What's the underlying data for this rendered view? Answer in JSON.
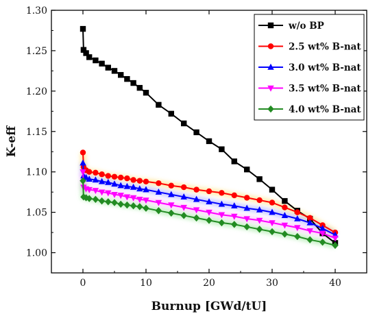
{
  "chart_data": {
    "type": "line",
    "title": "",
    "xlabel": "Burnup [GWd/tU]",
    "ylabel": "K-eff",
    "xlim": [
      -5,
      45
    ],
    "ylim": [
      0.975,
      1.3
    ],
    "x_ticks": [
      0,
      10,
      20,
      30,
      40
    ],
    "y_ticks": [
      1.0,
      1.05,
      1.1,
      1.15,
      1.2,
      1.25,
      1.3
    ],
    "grid": false,
    "legend_position": "top-right",
    "series": [
      {
        "name": "w/o BP",
        "color": "#000000",
        "marker": "square",
        "x": [
          0,
          0.1,
          0.5,
          1,
          2,
          3,
          4,
          5,
          6,
          7,
          8,
          9,
          10,
          12,
          14,
          16,
          18,
          20,
          22,
          24,
          26,
          28,
          30,
          32,
          34,
          36,
          38,
          40
        ],
        "y": [
          1.277,
          1.251,
          1.247,
          1.242,
          1.238,
          1.234,
          1.229,
          1.225,
          1.22,
          1.215,
          1.21,
          1.204,
          1.198,
          1.183,
          1.172,
          1.16,
          1.149,
          1.138,
          1.128,
          1.113,
          1.103,
          1.091,
          1.078,
          1.064,
          1.052,
          1.042,
          1.024,
          1.012
        ]
      },
      {
        "name": "2.5 wt% B-nat",
        "color": "#ff0000",
        "marker": "circle",
        "x": [
          0,
          0.1,
          0.5,
          1,
          2,
          3,
          4,
          5,
          6,
          7,
          8,
          9,
          10,
          12,
          14,
          16,
          18,
          20,
          22,
          24,
          26,
          28,
          30,
          32,
          34,
          36,
          38,
          40
        ],
        "y": [
          1.124,
          1.106,
          1.102,
          1.1,
          1.099,
          1.097,
          1.095,
          1.094,
          1.093,
          1.092,
          1.09,
          1.089,
          1.088,
          1.086,
          1.083,
          1.081,
          1.078,
          1.076,
          1.074,
          1.071,
          1.068,
          1.065,
          1.062,
          1.056,
          1.05,
          1.043,
          1.034,
          1.025
        ]
      },
      {
        "name": "3.0 wt% B-nat",
        "color": "#0000ff",
        "marker": "triangle-up",
        "x": [
          0,
          0.1,
          0.5,
          1,
          2,
          3,
          4,
          5,
          6,
          7,
          8,
          9,
          10,
          12,
          14,
          16,
          18,
          20,
          22,
          24,
          26,
          28,
          30,
          32,
          34,
          36,
          38,
          40
        ],
        "y": [
          1.111,
          1.095,
          1.093,
          1.091,
          1.09,
          1.088,
          1.087,
          1.085,
          1.083,
          1.082,
          1.081,
          1.079,
          1.078,
          1.075,
          1.072,
          1.069,
          1.066,
          1.063,
          1.06,
          1.058,
          1.055,
          1.053,
          1.05,
          1.046,
          1.042,
          1.037,
          1.03,
          1.022
        ]
      },
      {
        "name": "3.5 wt% B-nat",
        "color": "#ff00ff",
        "marker": "triangle-down",
        "x": [
          0,
          0.1,
          0.5,
          1,
          2,
          3,
          4,
          5,
          6,
          7,
          8,
          9,
          10,
          12,
          14,
          16,
          18,
          20,
          22,
          24,
          26,
          28,
          30,
          32,
          34,
          36,
          38,
          40
        ],
        "y": [
          1.1,
          1.081,
          1.079,
          1.078,
          1.077,
          1.075,
          1.074,
          1.072,
          1.071,
          1.069,
          1.068,
          1.066,
          1.065,
          1.062,
          1.059,
          1.056,
          1.053,
          1.05,
          1.047,
          1.045,
          1.042,
          1.04,
          1.037,
          1.034,
          1.031,
          1.027,
          1.024,
          1.018
        ]
      },
      {
        "name": "4.0 wt% B-nat",
        "color": "#228b22",
        "marker": "diamond",
        "x": [
          0,
          0.1,
          0.5,
          1,
          2,
          3,
          4,
          5,
          6,
          7,
          8,
          9,
          10,
          12,
          14,
          16,
          18,
          20,
          22,
          24,
          26,
          28,
          30,
          32,
          34,
          36,
          38,
          40
        ],
        "y": [
          1.089,
          1.069,
          1.068,
          1.067,
          1.066,
          1.064,
          1.063,
          1.062,
          1.06,
          1.059,
          1.058,
          1.057,
          1.055,
          1.052,
          1.049,
          1.046,
          1.043,
          1.04,
          1.037,
          1.035,
          1.032,
          1.029,
          1.026,
          1.023,
          1.02,
          1.016,
          1.013,
          1.009
        ]
      }
    ]
  }
}
